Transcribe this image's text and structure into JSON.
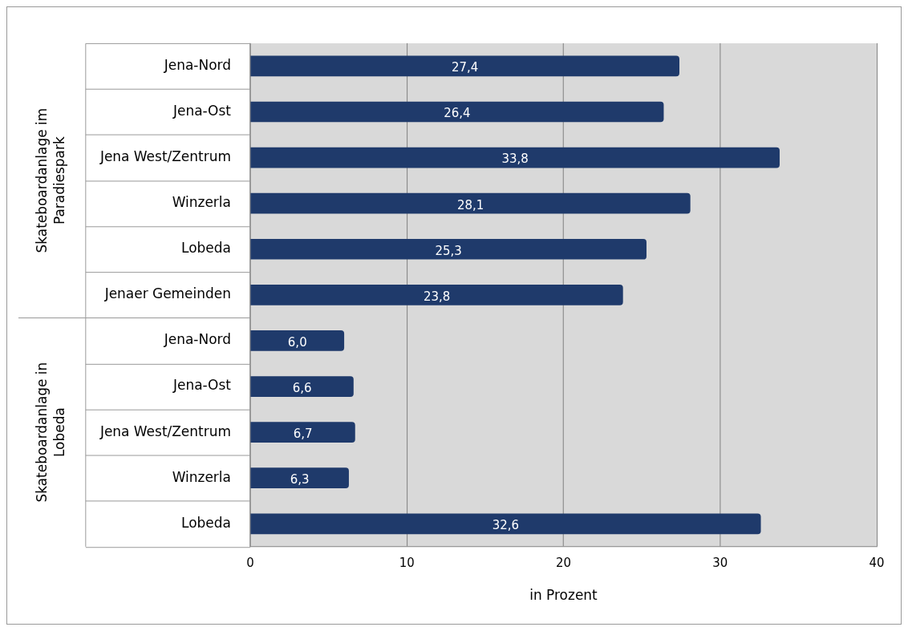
{
  "chart_data": {
    "type": "bar",
    "orientation": "horizontal",
    "xlabel": "in Prozent",
    "categories": [
      "Jena-Nord",
      "Jena-Ost",
      "Jena West/Zentrum",
      "Winzerla",
      "Lobeda",
      "Jenaer Gemeinden",
      "Jena-Nord",
      "Jena-Ost",
      "Jena West/Zentrum",
      "Winzerla",
      "Lobeda"
    ],
    "values": [
      27.4,
      26.4,
      33.8,
      28.1,
      25.3,
      23.8,
      6.0,
      6.6,
      6.7,
      6.3,
      32.6
    ],
    "value_labels": [
      "27,4",
      "26,4",
      "33,8",
      "28,1",
      "25,3",
      "23,8",
      "6,0",
      "6,6",
      "6,7",
      "6,3",
      "32,6"
    ],
    "color": "#1f3a6b",
    "xlim": [
      0,
      40
    ],
    "xticks": [
      0,
      10,
      20,
      30,
      40
    ],
    "grid": "x",
    "legend": false,
    "annotations": [
      "Skateboardanlage im Paradiespark",
      "Skateboardanlage in Lobeda"
    ]
  }
}
